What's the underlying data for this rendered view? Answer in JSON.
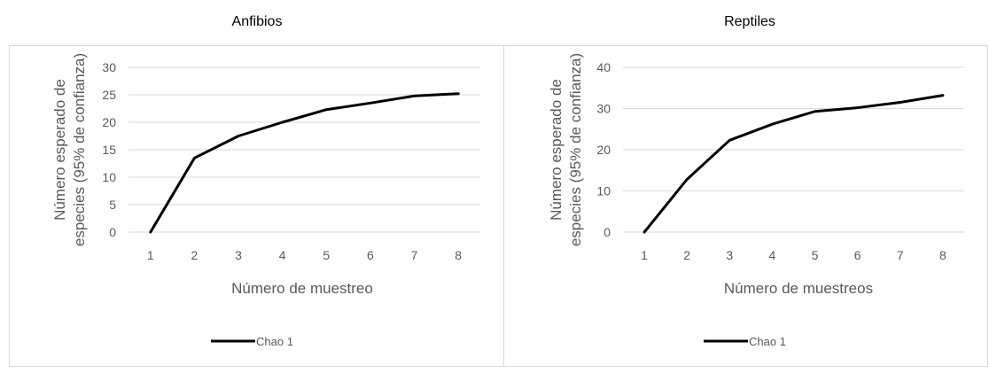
{
  "chart_data": [
    {
      "type": "line",
      "title": "Anfibios",
      "xlabel": "Número de muestreo",
      "ylabel_lines": [
        "Número esperado de",
        "especies (95% de confianza)"
      ],
      "categories": [
        "1",
        "2",
        "3",
        "4",
        "5",
        "6",
        "7",
        "8"
      ],
      "series": [
        {
          "name": "Chao 1",
          "color": "#000000",
          "values": [
            0,
            13.5,
            17.5,
            20,
            22.3,
            23.5,
            24.8,
            25.2
          ]
        }
      ],
      "ylim": [
        0,
        30
      ],
      "yticks": [
        0,
        5,
        10,
        15,
        20,
        25,
        30
      ],
      "grid": true,
      "legend": "bottom"
    },
    {
      "type": "line",
      "title": "Reptiles",
      "xlabel": "Número de muestreos",
      "ylabel_lines": [
        "Número esperado de",
        "especies (95% de confianza)"
      ],
      "categories": [
        "1",
        "2",
        "3",
        "4",
        "5",
        "6",
        "7",
        "8"
      ],
      "series": [
        {
          "name": "Chao 1",
          "color": "#000000",
          "values": [
            0,
            12.8,
            22.3,
            26.2,
            29.3,
            30.2,
            31.5,
            33.2
          ]
        }
      ],
      "ylim": [
        0,
        40
      ],
      "yticks": [
        0,
        10,
        20,
        30,
        40
      ],
      "grid": true,
      "legend": "bottom"
    }
  ]
}
